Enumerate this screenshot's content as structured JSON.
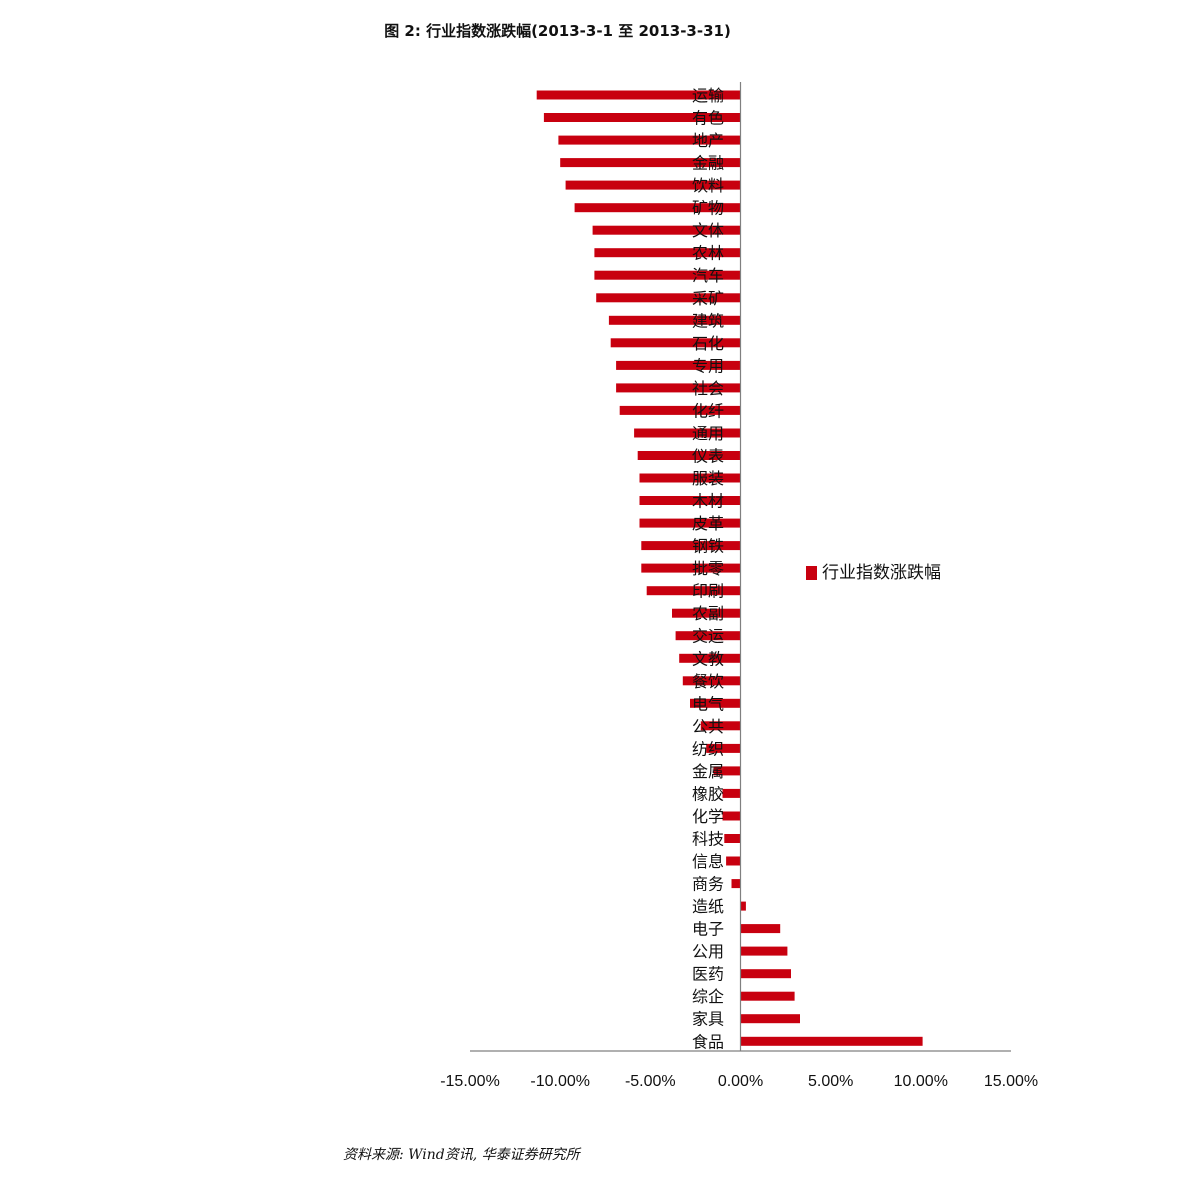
{
  "title": "图 2: 行业指数涨跌幅(2013-3-1 至 2013-3-31)",
  "source": "资料来源: Wind资讯, 华泰证券研究所",
  "colors": {
    "bar": "#c8000f",
    "axis": "#808080"
  },
  "chart_data": {
    "type": "bar",
    "orientation": "horizontal",
    "categories": [
      "运输",
      "有色",
      "地产",
      "金融",
      "饮料",
      "矿物",
      "文体",
      "农林",
      "汽车",
      "采矿",
      "建筑",
      "石化",
      "专用",
      "社会",
      "化纤",
      "通用",
      "仪表",
      "服装",
      "木材",
      "皮革",
      "钢铁",
      "批零",
      "印刷",
      "农副",
      "交运",
      "文教",
      "餐饮",
      "电气",
      "公共",
      "纺织",
      "金属",
      "橡胶",
      "化学",
      "科技",
      "信息",
      "商务",
      "造纸",
      "电子",
      "公用",
      "医药",
      "综企",
      "家具",
      "食品"
    ],
    "series": [
      {
        "name": "行业指数涨跌幅",
        "values": [
          -11.3,
          -10.9,
          -10.1,
          -10.0,
          -9.7,
          -9.2,
          -8.2,
          -8.1,
          -8.1,
          -8.0,
          -7.3,
          -7.2,
          -6.9,
          -6.9,
          -6.7,
          -5.9,
          -5.7,
          -5.6,
          -5.6,
          -5.6,
          -5.5,
          -5.5,
          -5.2,
          -3.8,
          -3.6,
          -3.4,
          -3.2,
          -2.8,
          -2.2,
          -1.9,
          -1.5,
          -1.0,
          -1.0,
          -0.9,
          -0.8,
          -0.5,
          0.3,
          2.2,
          2.6,
          2.8,
          3.0,
          3.3,
          10.1
        ]
      }
    ],
    "xlim": [
      -15,
      15
    ],
    "xticks": [
      "-15.00%",
      "-10.00%",
      "-5.00%",
      "0.00%",
      "5.00%",
      "10.00%",
      "15.00%"
    ],
    "xtick_values": [
      -15,
      -10,
      -5,
      0,
      5,
      10,
      15
    ],
    "legend": "right",
    "grid": false
  }
}
